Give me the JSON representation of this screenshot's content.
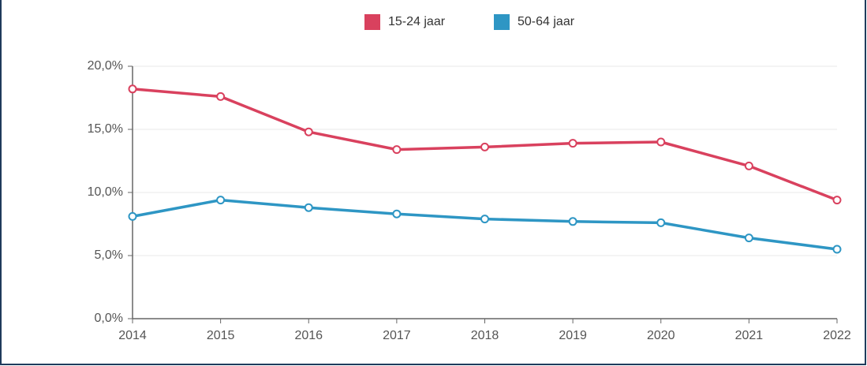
{
  "chart_data": {
    "type": "line",
    "x": [
      2014,
      2015,
      2016,
      2017,
      2018,
      2019,
      2020,
      2021,
      2022
    ],
    "xlim": [
      2014,
      2022
    ],
    "xticks": [
      2014,
      2015,
      2016,
      2017,
      2018,
      2019,
      2020,
      2021,
      2022
    ],
    "series": [
      {
        "name": "15-24 jaar",
        "color": "#d9415e",
        "values": [
          18.2,
          17.6,
          14.8,
          13.4,
          13.6,
          13.9,
          14.0,
          12.1,
          9.4
        ]
      },
      {
        "name": "50-64 jaar",
        "color": "#2e96c4",
        "values": [
          8.1,
          9.4,
          8.8,
          8.3,
          7.9,
          7.7,
          7.6,
          6.4,
          5.5
        ]
      }
    ],
    "ylim": [
      0,
      20
    ],
    "yticks": [
      {
        "value": 0,
        "label": "0,0%"
      },
      {
        "value": 5,
        "label": "5,0%"
      },
      {
        "value": 10,
        "label": "10,0%"
      },
      {
        "value": 15,
        "label": "15,0%"
      },
      {
        "value": 20,
        "label": "20,0%"
      }
    ],
    "grid": true,
    "legend": "top"
  }
}
